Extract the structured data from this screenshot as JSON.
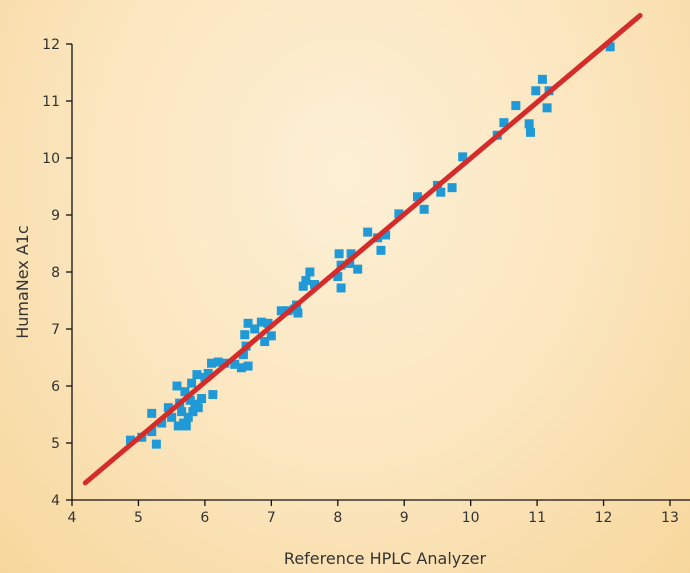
{
  "chart_data": {
    "type": "scatter",
    "xlabel": "Reference HPLC Analyzer",
    "ylabel": "HumaNex A1c",
    "xlim": [
      4,
      13
    ],
    "ylim": [
      4,
      12
    ],
    "x_ticks": [
      "4",
      "5",
      "6",
      "7",
      "8",
      "9",
      "10",
      "11",
      "12",
      "13"
    ],
    "y_ticks": [
      "4",
      "5",
      "6",
      "7",
      "8",
      "9",
      "10",
      "11",
      "12"
    ],
    "grid": false,
    "legend": "none",
    "colors": {
      "points": "#1f9ad6",
      "fit_line": "#d42b2b"
    },
    "fit_line": {
      "x": [
        4.2,
        12.55
      ],
      "y": [
        4.3,
        12.5
      ]
    },
    "series": [
      {
        "points": [
          [
            4.88,
            5.05
          ],
          [
            5.05,
            5.1
          ],
          [
            5.2,
            5.52
          ],
          [
            5.2,
            5.2
          ],
          [
            5.27,
            4.98
          ],
          [
            5.35,
            5.35
          ],
          [
            5.45,
            5.62
          ],
          [
            5.5,
            5.45
          ],
          [
            5.58,
            6.0
          ],
          [
            5.6,
            5.3
          ],
          [
            5.62,
            5.7
          ],
          [
            5.65,
            5.55
          ],
          [
            5.68,
            5.35
          ],
          [
            5.7,
            5.9
          ],
          [
            5.72,
            5.3
          ],
          [
            5.75,
            5.45
          ],
          [
            5.78,
            5.75
          ],
          [
            5.8,
            6.05
          ],
          [
            5.82,
            5.55
          ],
          [
            5.85,
            5.68
          ],
          [
            5.88,
            6.2
          ],
          [
            5.9,
            5.62
          ],
          [
            5.95,
            5.78
          ],
          [
            6.0,
            6.15
          ],
          [
            6.05,
            6.22
          ],
          [
            6.1,
            6.4
          ],
          [
            6.12,
            5.85
          ],
          [
            6.2,
            6.42
          ],
          [
            6.3,
            6.4
          ],
          [
            6.45,
            6.38
          ],
          [
            6.55,
            6.32
          ],
          [
            6.58,
            6.55
          ],
          [
            6.6,
            6.9
          ],
          [
            6.62,
            6.7
          ],
          [
            6.65,
            6.35
          ],
          [
            6.65,
            7.1
          ],
          [
            6.75,
            7.0
          ],
          [
            6.85,
            7.12
          ],
          [
            6.9,
            6.78
          ],
          [
            6.95,
            7.1
          ],
          [
            7.0,
            6.88
          ],
          [
            7.15,
            7.32
          ],
          [
            7.25,
            7.32
          ],
          [
            7.35,
            7.35
          ],
          [
            7.38,
            7.42
          ],
          [
            7.4,
            7.28
          ],
          [
            7.48,
            7.75
          ],
          [
            7.52,
            7.85
          ],
          [
            7.58,
            8.0
          ],
          [
            7.65,
            7.78
          ],
          [
            8.0,
            7.92
          ],
          [
            8.02,
            8.32
          ],
          [
            8.05,
            7.72
          ],
          [
            8.05,
            8.12
          ],
          [
            8.18,
            8.15
          ],
          [
            8.2,
            8.32
          ],
          [
            8.3,
            8.05
          ],
          [
            8.45,
            8.7
          ],
          [
            8.6,
            8.6
          ],
          [
            8.65,
            8.38
          ],
          [
            8.72,
            8.65
          ],
          [
            8.92,
            9.02
          ],
          [
            9.2,
            9.32
          ],
          [
            9.3,
            9.1
          ],
          [
            9.5,
            9.52
          ],
          [
            9.55,
            9.4
          ],
          [
            9.72,
            9.48
          ],
          [
            9.88,
            10.02
          ],
          [
            10.4,
            10.4
          ],
          [
            10.5,
            10.62
          ],
          [
            10.68,
            10.92
          ],
          [
            10.88,
            10.6
          ],
          [
            10.9,
            10.45
          ],
          [
            10.98,
            11.18
          ],
          [
            11.08,
            11.38
          ],
          [
            11.15,
            10.88
          ],
          [
            11.18,
            11.18
          ],
          [
            12.1,
            11.95
          ]
        ]
      }
    ]
  }
}
